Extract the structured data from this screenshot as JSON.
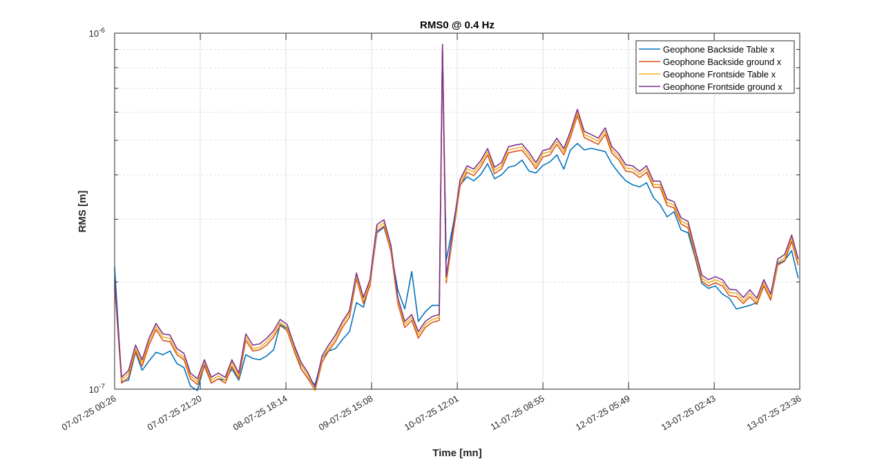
{
  "chart_data": {
    "type": "line",
    "title": "RMS0 @ 0.4 Hz",
    "xlabel": "Time [mn]",
    "ylabel": "RMS [m]",
    "yscale": "log",
    "ylim": [
      1e-07,
      1e-06
    ],
    "y_tick_labels": [
      {
        "base": "10",
        "exp": "-7",
        "value": 1e-07
      },
      {
        "base": "10",
        "exp": "-6",
        "value": 1e-06
      }
    ],
    "x_unit": "hours since 07-07-25 00:26",
    "xlim": [
      0,
      167.17
    ],
    "x_ticks": [
      0,
      20.9,
      41.8,
      62.7,
      83.6,
      104.5,
      125.4,
      146.3,
      167.17
    ],
    "x_tick_labels": [
      "07-07-25 00:26",
      "07-07-25 21:20",
      "08-07-25 18:14",
      "09-07-25 15:08",
      "10-07-25 12:01",
      "11-07-25 08:55",
      "12-07-25 05:49",
      "13-07-25 02:43",
      "13-07-25 23:36"
    ],
    "grid": true,
    "legend_position": "top-right",
    "value_multiplier": 1e-07,
    "x": [
      0,
      1.7,
      3.4,
      5.1,
      6.7,
      8.4,
      10.1,
      11.8,
      13.5,
      15.2,
      16.9,
      18.5,
      20.2,
      21.9,
      23.6,
      25.3,
      27.0,
      28.6,
      30.3,
      32.0,
      33.7,
      35.4,
      37.1,
      38.8,
      40.4,
      42.1,
      43.8,
      45.5,
      47.2,
      48.9,
      50.6,
      52.2,
      53.9,
      55.6,
      57.3,
      59.0,
      60.7,
      62.3,
      64.0,
      65.7,
      67.4,
      69.1,
      70.8,
      72.5,
      74.1,
      75.8,
      77.5,
      79.2,
      80.0,
      80.9,
      82.6,
      84.3,
      86.0,
      87.6,
      89.3,
      91.0,
      92.7,
      94.4,
      96.1,
      97.8,
      99.4,
      101.1,
      102.8,
      104.5,
      106.2,
      107.9,
      109.6,
      111.2,
      112.9,
      114.6,
      116.3,
      118.0,
      119.7,
      121.3,
      123.0,
      124.7,
      126.4,
      128.1,
      129.8,
      131.5,
      133.1,
      134.8,
      136.5,
      138.2,
      139.9,
      141.6,
      143.3,
      144.9,
      146.6,
      148.3,
      150.0,
      151.7,
      153.4,
      155.0,
      156.7,
      158.4,
      160.1,
      161.8,
      163.5,
      165.2,
      166.8
    ],
    "series": [
      {
        "name": "Geophone Backside Table x",
        "color": "#0072BD",
        "values": [
          2.2,
          1.05,
          1.06,
          1.27,
          1.13,
          1.2,
          1.27,
          1.25,
          1.28,
          1.18,
          1.15,
          1.02,
          0.99,
          1.17,
          1.04,
          1.07,
          1.06,
          1.14,
          1.06,
          1.25,
          1.22,
          1.21,
          1.24,
          1.29,
          1.52,
          1.48,
          1.33,
          1.14,
          1.07,
          1.03,
          1.22,
          1.28,
          1.3,
          1.38,
          1.45,
          1.75,
          1.7,
          1.98,
          2.75,
          2.85,
          2.45,
          1.9,
          1.68,
          2.14,
          1.55,
          1.65,
          1.72,
          1.72,
          9.0,
          2.3,
          2.9,
          3.75,
          3.95,
          3.85,
          4.0,
          4.3,
          3.9,
          4.0,
          4.2,
          4.25,
          4.4,
          4.1,
          4.05,
          4.25,
          4.35,
          4.55,
          4.15,
          4.7,
          4.9,
          4.7,
          4.75,
          4.7,
          4.65,
          4.3,
          4.05,
          3.85,
          3.75,
          3.7,
          3.8,
          3.45,
          3.3,
          3.05,
          3.15,
          2.8,
          2.75,
          2.35,
          1.98,
          1.92,
          1.95,
          1.85,
          1.8,
          1.68,
          1.7,
          1.72,
          1.75,
          1.95,
          1.78,
          2.25,
          2.3,
          2.45,
          2.05
        ]
      },
      {
        "name": "Geophone Backside ground x",
        "color": "#D95319",
        "values": [
          1.95,
          1.04,
          1.08,
          1.28,
          1.16,
          1.33,
          1.47,
          1.37,
          1.36,
          1.25,
          1.21,
          1.07,
          1.03,
          1.16,
          1.04,
          1.07,
          1.04,
          1.16,
          1.07,
          1.37,
          1.28,
          1.29,
          1.33,
          1.4,
          1.51,
          1.46,
          1.28,
          1.14,
          1.07,
          0.99,
          1.19,
          1.28,
          1.36,
          1.49,
          1.59,
          2.04,
          1.74,
          1.95,
          2.78,
          2.87,
          2.44,
          1.74,
          1.49,
          1.56,
          1.39,
          1.49,
          1.54,
          1.56,
          9.0,
          1.99,
          2.73,
          3.72,
          4.07,
          3.98,
          4.2,
          4.55,
          4.03,
          4.16,
          4.61,
          4.66,
          4.69,
          4.44,
          4.16,
          4.49,
          4.55,
          4.87,
          4.55,
          5.09,
          5.87,
          5.09,
          4.98,
          4.87,
          5.2,
          4.61,
          4.41,
          4.1,
          4.07,
          3.93,
          4.07,
          3.69,
          3.69,
          3.28,
          3.23,
          2.91,
          2.84,
          2.38,
          2.01,
          1.95,
          1.99,
          1.95,
          1.83,
          1.82,
          1.74,
          1.82,
          1.73,
          1.95,
          1.78,
          2.23,
          2.29,
          2.6,
          2.23
        ]
      },
      {
        "name": "Geophone Frontside Table x",
        "color": "#EDB120",
        "values": [
          1.99,
          1.06,
          1.11,
          1.3,
          1.19,
          1.36,
          1.5,
          1.4,
          1.39,
          1.27,
          1.23,
          1.09,
          1.05,
          1.19,
          1.06,
          1.09,
          1.06,
          1.19,
          1.09,
          1.4,
          1.3,
          1.31,
          1.36,
          1.43,
          1.54,
          1.49,
          1.3,
          1.17,
          1.09,
          0.99,
          1.22,
          1.3,
          1.39,
          1.52,
          1.63,
          2.08,
          1.77,
          1.99,
          2.84,
          2.93,
          2.49,
          1.77,
          1.52,
          1.59,
          1.42,
          1.52,
          1.57,
          1.59,
          9.1,
          2.03,
          2.78,
          3.8,
          4.16,
          4.07,
          4.29,
          4.65,
          4.12,
          4.24,
          4.7,
          4.75,
          4.79,
          4.54,
          4.24,
          4.59,
          4.65,
          4.97,
          4.65,
          5.19,
          5.99,
          5.19,
          5.09,
          4.97,
          5.31,
          4.7,
          4.5,
          4.18,
          4.16,
          4.01,
          4.16,
          3.76,
          3.76,
          3.35,
          3.29,
          2.97,
          2.9,
          2.43,
          2.05,
          1.99,
          2.03,
          1.99,
          1.87,
          1.86,
          1.77,
          1.86,
          1.76,
          1.99,
          1.81,
          2.27,
          2.34,
          2.66,
          2.27
        ]
      },
      {
        "name": "Geophone Frontside ground x",
        "color": "#7E2F8E",
        "values": [
          2.03,
          1.08,
          1.13,
          1.33,
          1.21,
          1.39,
          1.53,
          1.43,
          1.42,
          1.3,
          1.26,
          1.11,
          1.07,
          1.21,
          1.08,
          1.11,
          1.08,
          1.21,
          1.11,
          1.43,
          1.33,
          1.34,
          1.39,
          1.46,
          1.57,
          1.52,
          1.33,
          1.19,
          1.11,
          1.01,
          1.24,
          1.33,
          1.42,
          1.55,
          1.66,
          2.12,
          1.81,
          2.03,
          2.9,
          2.99,
          2.54,
          1.81,
          1.55,
          1.62,
          1.45,
          1.55,
          1.6,
          1.62,
          9.3,
          2.07,
          2.84,
          3.88,
          4.24,
          4.15,
          4.38,
          4.74,
          4.2,
          4.33,
          4.8,
          4.85,
          4.89,
          4.63,
          4.33,
          4.68,
          4.74,
          5.07,
          4.74,
          5.3,
          6.11,
          5.3,
          5.19,
          5.07,
          5.42,
          4.8,
          4.59,
          4.27,
          4.24,
          4.09,
          4.24,
          3.84,
          3.84,
          3.42,
          3.36,
          3.03,
          2.96,
          2.48,
          2.09,
          2.03,
          2.07,
          2.03,
          1.91,
          1.9,
          1.81,
          1.9,
          1.8,
          2.03,
          1.85,
          2.32,
          2.39,
          2.71,
          2.32
        ]
      }
    ]
  }
}
